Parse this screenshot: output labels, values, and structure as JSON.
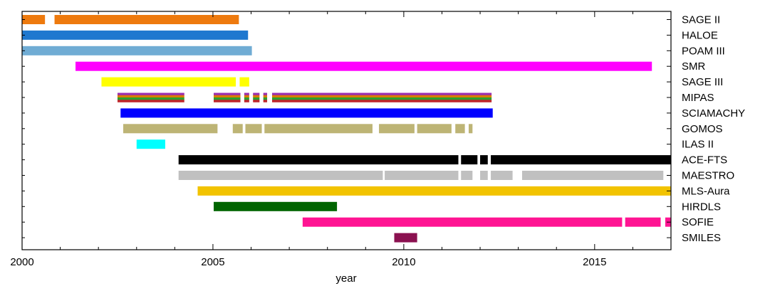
{
  "chart_data": {
    "type": "timeline",
    "xlabel": "year",
    "xlim": [
      2000,
      2017
    ],
    "xticks": [
      2000,
      2005,
      2010,
      2015
    ],
    "x_minor_step": 1,
    "grid": false,
    "instruments": [
      {
        "name": "SAGE II",
        "color": "#ee7a0e",
        "segments": [
          [
            2000.0,
            2000.6
          ],
          [
            2000.85,
            2005.68
          ]
        ]
      },
      {
        "name": "HALOE",
        "color": "#1f78cf",
        "segments": [
          [
            2000.0,
            2005.92
          ]
        ]
      },
      {
        "name": "POAM III",
        "color": "#70acd4",
        "segments": [
          [
            2000.0,
            2006.02
          ]
        ]
      },
      {
        "name": "SMR",
        "color": "#ff00ff",
        "segments": [
          [
            2001.4,
            2016.5
          ]
        ]
      },
      {
        "name": "SAGE III",
        "color": "#ffff00",
        "segments": [
          [
            2002.08,
            2005.6
          ],
          [
            2005.7,
            2005.95
          ]
        ]
      },
      {
        "name": "MIPAS",
        "color": "#2ca02c",
        "stripes": [
          "#9b2fae",
          "#d97c00",
          "#2ca02c",
          "#c0272d"
        ],
        "segments": [
          [
            2002.5,
            2004.25
          ],
          [
            2005.02,
            2005.72
          ],
          [
            2005.82,
            2005.95
          ],
          [
            2006.05,
            2006.22
          ],
          [
            2006.32,
            2006.42
          ],
          [
            2006.55,
            2012.3
          ]
        ]
      },
      {
        "name": "SCIAMACHY",
        "color": "#0000ff",
        "segments": [
          [
            2002.58,
            2012.33
          ]
        ]
      },
      {
        "name": "GOMOS",
        "color": "#bdb475",
        "segments": [
          [
            2002.65,
            2005.12
          ],
          [
            2005.52,
            2005.78
          ],
          [
            2005.85,
            2006.28
          ],
          [
            2006.35,
            2009.18
          ],
          [
            2009.35,
            2010.28
          ],
          [
            2010.35,
            2011.25
          ],
          [
            2011.35,
            2011.6
          ],
          [
            2011.7,
            2011.8
          ]
        ]
      },
      {
        "name": "ILAS II",
        "color": "#00ffff",
        "segments": [
          [
            2003.0,
            2003.75
          ]
        ]
      },
      {
        "name": "ACE-FTS",
        "color": "#000000",
        "segments": [
          [
            2004.1,
            2011.43
          ],
          [
            2011.5,
            2011.93
          ],
          [
            2012.0,
            2012.2
          ],
          [
            2012.28,
            2017.0
          ]
        ]
      },
      {
        "name": "MAESTRO",
        "color": "#c0c0c0",
        "segments": [
          [
            2004.1,
            2009.45
          ],
          [
            2009.5,
            2011.43
          ],
          [
            2011.5,
            2011.8
          ],
          [
            2012.0,
            2012.2
          ],
          [
            2012.28,
            2012.85
          ],
          [
            2013.1,
            2016.8
          ]
        ]
      },
      {
        "name": "MLS-Aura",
        "color": "#f2c300",
        "segments": [
          [
            2004.6,
            2017.0
          ]
        ]
      },
      {
        "name": "HIRDLS",
        "color": "#006400",
        "segments": [
          [
            2005.02,
            2008.25
          ]
        ]
      },
      {
        "name": "SOFIE",
        "color": "#ff1493",
        "segments": [
          [
            2007.35,
            2015.72
          ],
          [
            2015.8,
            2016.73
          ],
          [
            2016.85,
            2017.0
          ]
        ]
      },
      {
        "name": "SMILES",
        "color": "#8b1150",
        "segments": [
          [
            2009.75,
            2010.35
          ]
        ]
      }
    ]
  }
}
